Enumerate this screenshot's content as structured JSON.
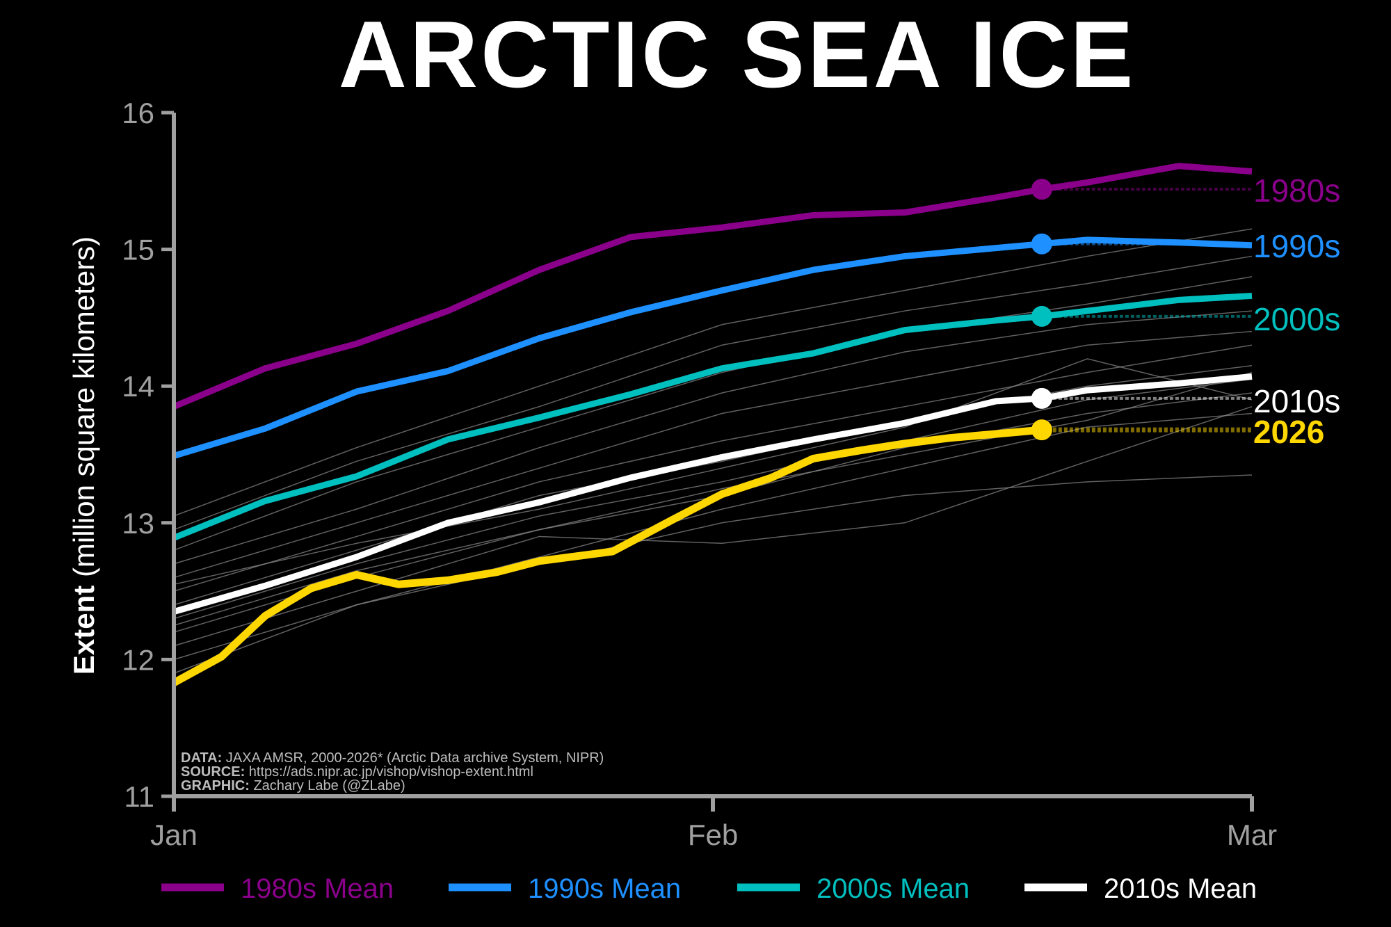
{
  "chart_data": {
    "type": "line",
    "title": "ARCTIC SEA ICE",
    "ylabel_bold": "Extent",
    "ylabel_rest": " (million square kilometers)",
    "ylim": [
      11,
      16
    ],
    "yticks": [
      11,
      12,
      13,
      14,
      15,
      16
    ],
    "xlim": [
      0,
      59
    ],
    "xticks": [
      {
        "label": "Jan",
        "day": 0
      },
      {
        "label": "Feb",
        "day": 29.5
      },
      {
        "label": "Mar",
        "day": 59
      }
    ],
    "grid": false,
    "legend_placement": "bottom",
    "credits": [
      {
        "bold": "DATA:",
        "text": " JAXA AMSR, 2000-2026* (Arctic Data archive System, NIPR)"
      },
      {
        "bold": "SOURCE:",
        "text": " https://ads.nipr.ac.jp/vishop/vishop-extent.html"
      },
      {
        "bold": "GRAPHIC:",
        "text": " Zachary Labe (@ZLabe)"
      }
    ],
    "marker_day": 47.5,
    "series": [
      {
        "name": "1980s Mean",
        "label": "1980s",
        "color": "#8b008b",
        "x": [
          0,
          5,
          10,
          15,
          20,
          25,
          30,
          35,
          40,
          45,
          47.5,
          50,
          55,
          59
        ],
        "y": [
          13.85,
          14.13,
          14.31,
          14.55,
          14.85,
          15.09,
          15.16,
          15.25,
          15.27,
          15.38,
          15.44,
          15.49,
          15.61,
          15.57
        ],
        "marker_value": 15.44
      },
      {
        "name": "1990s Mean",
        "label": "1990s",
        "color": "#1e90ff",
        "x": [
          0,
          5,
          10,
          15,
          20,
          25,
          30,
          35,
          40,
          45,
          47.5,
          50,
          55,
          59
        ],
        "y": [
          13.49,
          13.69,
          13.96,
          14.11,
          14.35,
          14.54,
          14.7,
          14.85,
          14.95,
          15.01,
          15.04,
          15.07,
          15.05,
          15.03
        ],
        "marker_value": 15.04
      },
      {
        "name": "2000s Mean",
        "label": "2000s",
        "color": "#00bfbf",
        "x": [
          0,
          5,
          10,
          15,
          20,
          25,
          30,
          35,
          40,
          45,
          47.5,
          50,
          55,
          59
        ],
        "y": [
          12.89,
          13.16,
          13.34,
          13.61,
          13.77,
          13.94,
          14.13,
          14.24,
          14.41,
          14.48,
          14.51,
          14.55,
          14.63,
          14.66
        ],
        "marker_value": 14.51
      },
      {
        "name": "2010s Mean",
        "label": "2010s",
        "color": "#ffffff",
        "x": [
          0,
          5,
          10,
          15,
          20,
          25,
          30,
          35,
          40,
          45,
          47.5,
          50,
          55,
          59
        ],
        "y": [
          12.35,
          12.54,
          12.75,
          13.0,
          13.15,
          13.33,
          13.48,
          13.61,
          13.73,
          13.89,
          13.91,
          13.97,
          14.02,
          14.07
        ],
        "marker_value": 13.91
      },
      {
        "name": "2026",
        "label": "2026",
        "color": "#ffd700",
        "bold": true,
        "in_legend": false,
        "x": [
          0,
          2.6,
          5,
          7.5,
          10,
          12.3,
          15,
          17.7,
          20,
          24,
          27.4,
          30,
          32.7,
          35,
          37.6,
          40,
          42.4,
          45,
          47.5
        ],
        "y": [
          11.83,
          12.02,
          12.32,
          12.52,
          12.62,
          12.55,
          12.58,
          12.64,
          12.72,
          12.79,
          13.03,
          13.21,
          13.33,
          13.47,
          13.53,
          13.58,
          13.62,
          13.65,
          13.68
        ],
        "marker_value": 13.68
      }
    ],
    "individual_years": {
      "color": "#8a8a8a",
      "x": [
        0,
        10,
        20,
        30,
        40,
        50,
        59
      ],
      "lines": [
        [
          12.95,
          13.45,
          13.85,
          14.3,
          14.55,
          14.75,
          14.95
        ],
        [
          13.05,
          13.55,
          14.0,
          14.45,
          14.7,
          14.95,
          15.15
        ],
        [
          12.8,
          13.3,
          13.7,
          14.1,
          14.4,
          14.6,
          14.8
        ],
        [
          12.7,
          13.1,
          13.55,
          13.95,
          14.25,
          14.45,
          14.55
        ],
        [
          12.6,
          13.0,
          13.4,
          13.8,
          14.05,
          14.3,
          14.4
        ],
        [
          12.5,
          12.9,
          13.3,
          13.6,
          13.85,
          14.1,
          14.3
        ],
        [
          12.4,
          12.8,
          13.2,
          13.45,
          13.75,
          14.0,
          14.15
        ],
        [
          12.3,
          12.7,
          13.05,
          13.3,
          13.6,
          13.9,
          14.05
        ],
        [
          12.2,
          12.6,
          12.95,
          13.2,
          13.55,
          13.8,
          13.95
        ],
        [
          12.1,
          12.5,
          12.9,
          12.85,
          13.0,
          13.45,
          13.85
        ],
        [
          12.0,
          12.4,
          12.75,
          13.1,
          13.4,
          13.7,
          13.8
        ],
        [
          11.9,
          12.4,
          12.7,
          13.0,
          13.2,
          13.3,
          13.35
        ],
        [
          12.55,
          12.85,
          13.1,
          13.4,
          13.7,
          14.2,
          13.9
        ],
        [
          12.25,
          12.65,
          12.95,
          13.25,
          13.5,
          13.75,
          14.1
        ]
      ]
    }
  }
}
